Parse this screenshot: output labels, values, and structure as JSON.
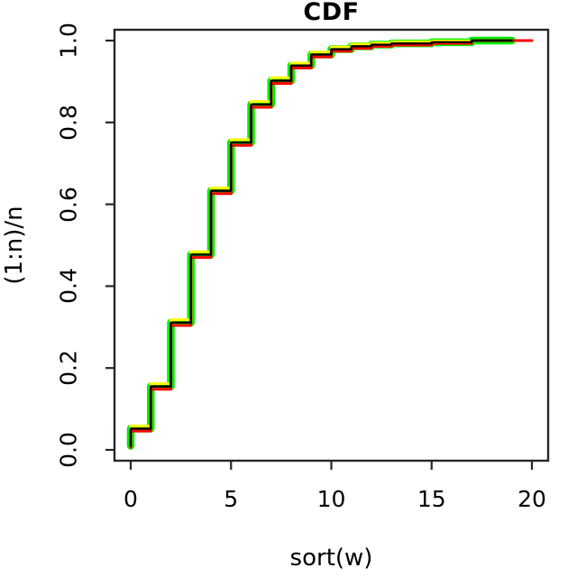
{
  "chart_data": {
    "type": "line",
    "subtype": "step-ecdf",
    "title": "CDF",
    "xlabel": "sort(w)",
    "ylabel": "(1:n)/n",
    "xlim": [
      0,
      20
    ],
    "ylim": [
      0,
      1
    ],
    "x_ticks": [
      0,
      5,
      10,
      15,
      20
    ],
    "y_ticks": [
      0.0,
      0.2,
      0.4,
      0.6,
      0.8,
      1.0
    ],
    "grid": false,
    "legend": "none",
    "frame_color": "#262626",
    "background": "#ffffff",
    "series": [
      {
        "name": "green",
        "color": "#00ee00",
        "stroke_width": 8.5,
        "points": [
          [
            0,
            0.01
          ],
          [
            0,
            0.052
          ],
          [
            1,
            0.155
          ],
          [
            2,
            0.311
          ],
          [
            3,
            0.477
          ],
          [
            4,
            0.633
          ],
          [
            5,
            0.751
          ],
          [
            6,
            0.844
          ],
          [
            7,
            0.902
          ],
          [
            8,
            0.939
          ],
          [
            9,
            0.966
          ],
          [
            10,
            0.979
          ],
          [
            11,
            0.986
          ],
          [
            12,
            0.99
          ],
          [
            13,
            0.993
          ],
          [
            15,
            0.996
          ],
          [
            17,
            1.0
          ],
          [
            19,
            1.0
          ]
        ]
      },
      {
        "name": "yellow",
        "color": "#ffff00",
        "stroke_width": 3.0,
        "points": [
          [
            0,
            0.016
          ],
          [
            0,
            0.058
          ],
          [
            1,
            0.162
          ],
          [
            2,
            0.318
          ],
          [
            3,
            0.484
          ],
          [
            4,
            0.64
          ],
          [
            5,
            0.758
          ],
          [
            6,
            0.851
          ],
          [
            7,
            0.909
          ],
          [
            8,
            0.945
          ],
          [
            9,
            0.972
          ],
          [
            10,
            0.984
          ],
          [
            11,
            0.991
          ],
          [
            12,
            0.994
          ],
          [
            13,
            0.997
          ],
          [
            15,
            0.999
          ],
          [
            17,
            1.0
          ],
          [
            19,
            1.0
          ]
        ]
      },
      {
        "name": "red",
        "color": "#ff0000",
        "stroke_width": 3.0,
        "points": [
          [
            0,
            0.006
          ],
          [
            0,
            0.046
          ],
          [
            1,
            0.148
          ],
          [
            2,
            0.304
          ],
          [
            3,
            0.47
          ],
          [
            4,
            0.626
          ],
          [
            5,
            0.744
          ],
          [
            6,
            0.837
          ],
          [
            7,
            0.895
          ],
          [
            8,
            0.933
          ],
          [
            9,
            0.96
          ],
          [
            10,
            0.974
          ],
          [
            11,
            0.981
          ],
          [
            12,
            0.986
          ],
          [
            13,
            0.989
          ],
          [
            15,
            0.993
          ],
          [
            17,
            1.0
          ],
          [
            20,
            1.0
          ]
        ]
      },
      {
        "name": "black",
        "color": "#000000",
        "stroke_width": 2.4,
        "points": [
          [
            0,
            0.01
          ],
          [
            0,
            0.052
          ],
          [
            1,
            0.155
          ],
          [
            2,
            0.311
          ],
          [
            3,
            0.477
          ],
          [
            4,
            0.633
          ],
          [
            5,
            0.751
          ],
          [
            6,
            0.844
          ],
          [
            7,
            0.902
          ],
          [
            8,
            0.939
          ],
          [
            9,
            0.966
          ],
          [
            10,
            0.979
          ],
          [
            11,
            0.986
          ],
          [
            12,
            0.99
          ],
          [
            13,
            0.993
          ],
          [
            15,
            0.996
          ],
          [
            17,
            1.0
          ],
          [
            19,
            1.0
          ]
        ]
      }
    ]
  }
}
